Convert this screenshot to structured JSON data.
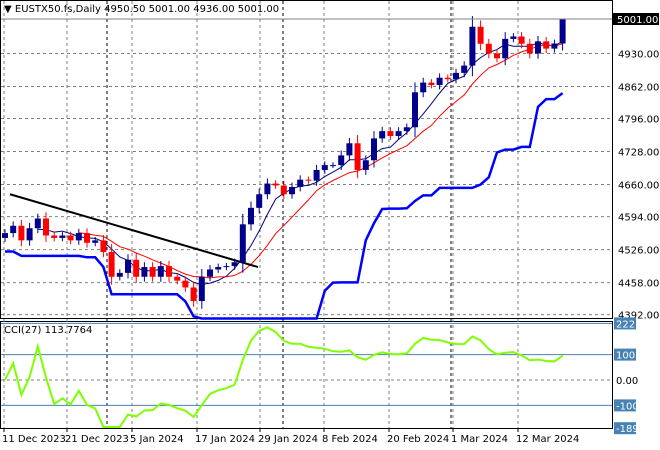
{
  "header": {
    "symbol": "EUSTX50.fs,Daily",
    "ohlc": "4950.50 5001.00 4936.00 5001.00"
  },
  "cci_header": {
    "label": "CCI(27)",
    "value": "113.7764"
  },
  "colors": {
    "bull": "#00008B",
    "bear": "#FF0000",
    "ma_fast": "#000080",
    "ma_slow": "#FF0000",
    "trail": "#0000FF",
    "cci": "#7FFF00",
    "trend": "#000000",
    "current_price_bg": "#000000"
  },
  "chart_data": {
    "type": "candlestick",
    "symbol": "EUSTX50.fs",
    "timeframe": "Daily",
    "last_bar": {
      "open": 4950.5,
      "high": 5001.0,
      "low": 4936.0,
      "close": 5001.0
    },
    "current_price_label": "5001.00",
    "price_ticks": [
      "4930.00",
      "4862.00",
      "4796.00",
      "4728.00",
      "4660.00",
      "4594.00",
      "4526.00",
      "4458.00",
      "4392.00"
    ],
    "price_range": [
      4392,
      5001
    ],
    "time_labels": [
      "11 Dec 2023",
      "21 Dec 2023",
      "5 Jan 2024",
      "17 Jan 2024",
      "29 Jan 2024",
      "8 Feb 2024",
      "20 Feb 2024",
      "1 Mar 2024",
      "12 Mar 2024"
    ],
    "closes": [
      4560,
      4575,
      4545,
      4570,
      4590,
      4555,
      4550,
      4555,
      4545,
      4560,
      4540,
      4545,
      4521,
      4470,
      4478,
      4505,
      4470,
      4490,
      4470,
      4492,
      4470,
      4462,
      4448,
      4420,
      4470,
      4485,
      4490,
      4492,
      4500,
      4578,
      4612,
      4640,
      4662,
      4658,
      4640,
      4655,
      4670,
      4668,
      4690,
      4700,
      4700,
      4720,
      4745,
      4690,
      4710,
      4755,
      4770,
      4760,
      4770,
      4778,
      4850,
      4870,
      4865,
      4880,
      4877,
      4890,
      4905,
      4985,
      4950,
      4930,
      4920,
      4960,
      4965,
      4950,
      4930,
      4955,
      4940,
      4950.5,
      5001
    ],
    "trendline": {
      "from": {
        "date": "11 Dec 2023",
        "price": 4640
      },
      "to": {
        "date": "29 Jan 2024",
        "price": 4490
      }
    },
    "grid": true,
    "cci": {
      "period": 27,
      "ticks": [
        "222.7374",
        "100",
        "0.00",
        "-100",
        "-189.6771"
      ],
      "range": [
        -189.6771,
        222.7374
      ],
      "levels": [
        100,
        -100
      ]
    }
  }
}
